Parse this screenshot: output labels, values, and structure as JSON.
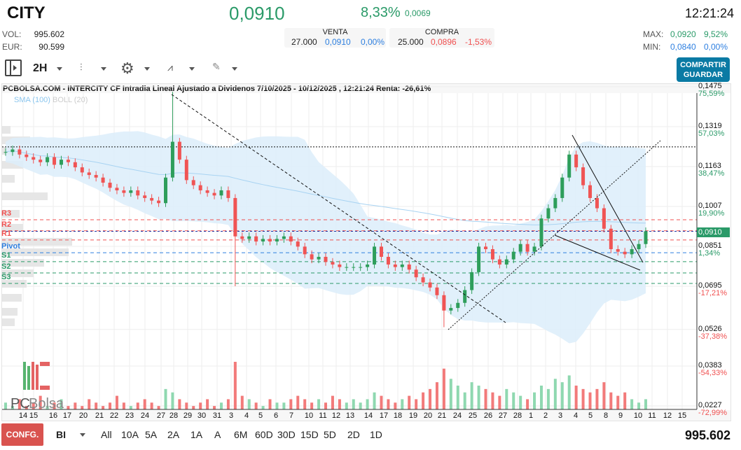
{
  "header": {
    "ticker": "CITY",
    "price": "0,0910",
    "change_pct": "8,33%",
    "change_abs": "0,0069",
    "time": "12:21:24",
    "vol_label": "VOL:",
    "vol": "995.602",
    "eur_label": "EUR:",
    "eur": "90.599",
    "venta": {
      "title": "VENTA",
      "qty": "27.000",
      "price": "0,0910",
      "pct": "0,00%"
    },
    "compra": {
      "title": "COMPRA",
      "qty": "25.000",
      "price": "0,0896",
      "pct": "-1,53%"
    },
    "max_label": "MAX:",
    "max": "0,0920",
    "max_pct": "9,52%",
    "min_label": "MIN:",
    "min": "0,0840",
    "min_pct": "0,00%"
  },
  "toolbar": {
    "interval": "2H",
    "share": "COMPARTIR",
    "save": "GUARDAR"
  },
  "chart": {
    "title": "PCBOLSA.COM - INTERCITY CF Intradia Lineal Ajustado a Dividenos 7/10/2025 - 10/12/2025 , 12:21:24 Renta: -26,61%",
    "legend_sma": "SMA (100)",
    "legend_boll": "BOLL (20)",
    "logo": "PCBolsa",
    "current_label": "0,0910"
  },
  "chart_data": {
    "type": "candlestick",
    "ylim": [
      0.0227,
      0.1475
    ],
    "y_ticks": [
      {
        "price": "0,1475",
        "pct": "75,59%",
        "v": 0.1475
      },
      {
        "price": "0,1319",
        "pct": "57,03%",
        "v": 0.1319
      },
      {
        "price": "0,1163",
        "pct": "38,47%",
        "v": 0.1163
      },
      {
        "price": "0,1007",
        "pct": "19,90%",
        "v": 0.1007
      },
      {
        "price": "0,0851",
        "pct": "1,34%",
        "v": 0.0851
      },
      {
        "price": "0,0695",
        "pct": "-17,21%",
        "v": 0.0695
      },
      {
        "price": "0,0526",
        "pct": "-37,38%",
        "v": 0.0526
      },
      {
        "price": "0,0383",
        "pct": "-54,33%",
        "v": 0.0383
      },
      {
        "price": "0,0227",
        "pct": "-72,99%",
        "v": 0.0227
      }
    ],
    "x_ticks": [
      "14",
      "15",
      "16",
      "17",
      "20",
      "21",
      "22",
      "23",
      "24",
      "27",
      "28",
      "29",
      "30",
      "31",
      "3",
      "4",
      "5",
      "6",
      "7",
      "10",
      "11",
      "12",
      "13",
      "14",
      "17",
      "18",
      "19",
      "20",
      "21",
      "24",
      "25",
      "26",
      "27",
      "28",
      "1",
      "2",
      "3",
      "4",
      "5",
      "8",
      "9",
      "10",
      "11",
      "12",
      "15"
    ],
    "pivots": [
      {
        "name": "R3",
        "v": 0.0955,
        "color": "#f05050"
      },
      {
        "name": "R2",
        "v": 0.0912,
        "color": "#f05050"
      },
      {
        "name": "R1",
        "v": 0.0876,
        "color": "#f05050"
      },
      {
        "name": "Pivot",
        "v": 0.0826,
        "color": "#2d7fe0"
      },
      {
        "name": "S1",
        "v": 0.0791,
        "color": "#2a9a68"
      },
      {
        "name": "S2",
        "v": 0.0747,
        "color": "#2a9a68"
      },
      {
        "name": "S3",
        "v": 0.0706,
        "color": "#2a9a68"
      }
    ],
    "resistance_level": 0.124,
    "closes": [
      0.122,
      0.123,
      0.121,
      0.12,
      0.119,
      0.118,
      0.12,
      0.117,
      0.119,
      0.118,
      0.116,
      0.114,
      0.113,
      0.112,
      0.11,
      0.108,
      0.107,
      0.106,
      0.107,
      0.105,
      0.104,
      0.103,
      0.102,
      0.112,
      0.126,
      0.119,
      0.111,
      0.109,
      0.107,
      0.106,
      0.105,
      0.107,
      0.104,
      0.089,
      0.088,
      0.089,
      0.087,
      0.088,
      0.087,
      0.088,
      0.089,
      0.087,
      0.085,
      0.082,
      0.08,
      0.081,
      0.079,
      0.078,
      0.077,
      0.077,
      0.077,
      0.077,
      0.078,
      0.085,
      0.081,
      0.078,
      0.077,
      0.078,
      0.076,
      0.073,
      0.071,
      0.069,
      0.066,
      0.06,
      0.061,
      0.063,
      0.068,
      0.075,
      0.085,
      0.084,
      0.08,
      0.078,
      0.08,
      0.083,
      0.086,
      0.083,
      0.085,
      0.096,
      0.1,
      0.104,
      0.112,
      0.121,
      0.116,
      0.109,
      0.104,
      0.1,
      0.092,
      0.084,
      0.083,
      0.082,
      0.084,
      0.086,
      0.091
    ],
    "volumes": [
      2,
      1,
      3,
      1,
      2,
      4,
      1,
      2,
      3,
      1,
      2,
      1,
      3,
      2,
      1,
      2,
      4,
      2,
      1,
      2,
      3,
      2,
      1,
      6,
      5,
      3,
      2,
      1,
      2,
      3,
      1,
      2,
      3,
      14,
      4,
      3,
      2,
      1,
      3,
      2,
      2,
      3,
      4,
      3,
      2,
      3,
      2,
      4,
      3,
      2,
      3,
      2,
      3,
      5,
      4,
      3,
      2,
      3,
      4,
      3,
      5,
      6,
      8,
      12,
      9,
      7,
      5,
      8,
      7,
      6,
      5,
      4,
      6,
      5,
      4,
      3,
      5,
      7,
      6,
      9,
      8,
      10,
      7,
      6,
      5,
      6,
      8,
      5,
      4,
      5,
      3,
      2,
      3
    ]
  },
  "footer": {
    "config": "CONFG.",
    "mode": "BI",
    "ranges": [
      "All",
      "10A",
      "5A",
      "2A",
      "1A",
      "A",
      "6M",
      "60D",
      "30D",
      "15D",
      "5D",
      "2D",
      "1D"
    ],
    "total_volume": "995.602"
  }
}
